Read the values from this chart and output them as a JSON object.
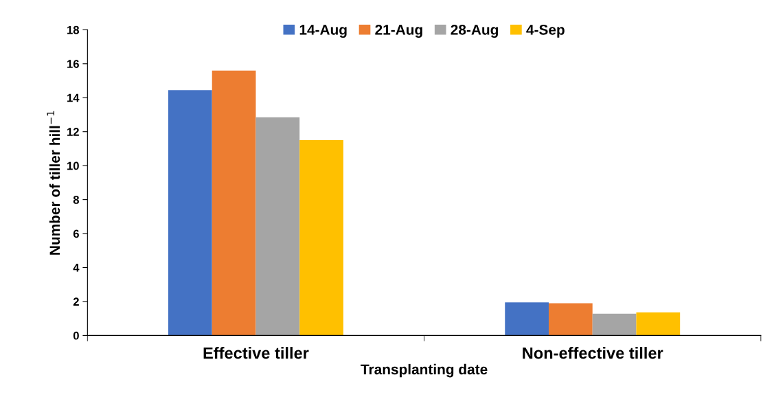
{
  "chart_data": {
    "type": "bar",
    "xlabel": "Transplanting date",
    "ylabel": "Number of tiller hill$^{−1}$",
    "categories": [
      "Effective tiller",
      "Non-effective tiller"
    ],
    "series": [
      {
        "name": "14-Aug",
        "color": "#4472c4",
        "values": [
          14.45,
          1.95
        ]
      },
      {
        "name": "21-Aug",
        "color": "#ed7d31",
        "values": [
          15.6,
          1.9
        ]
      },
      {
        "name": "28-Aug",
        "color": "#a5a5a5",
        "values": [
          12.85,
          1.28
        ]
      },
      {
        "name": "4-Sep",
        "color": "#ffc000",
        "values": [
          11.5,
          1.36
        ]
      }
    ],
    "ylim": [
      0,
      18
    ],
    "yticks": [
      0,
      2,
      4,
      6,
      8,
      10,
      12,
      14,
      16,
      18
    ],
    "grid": false,
    "legend": "top"
  }
}
